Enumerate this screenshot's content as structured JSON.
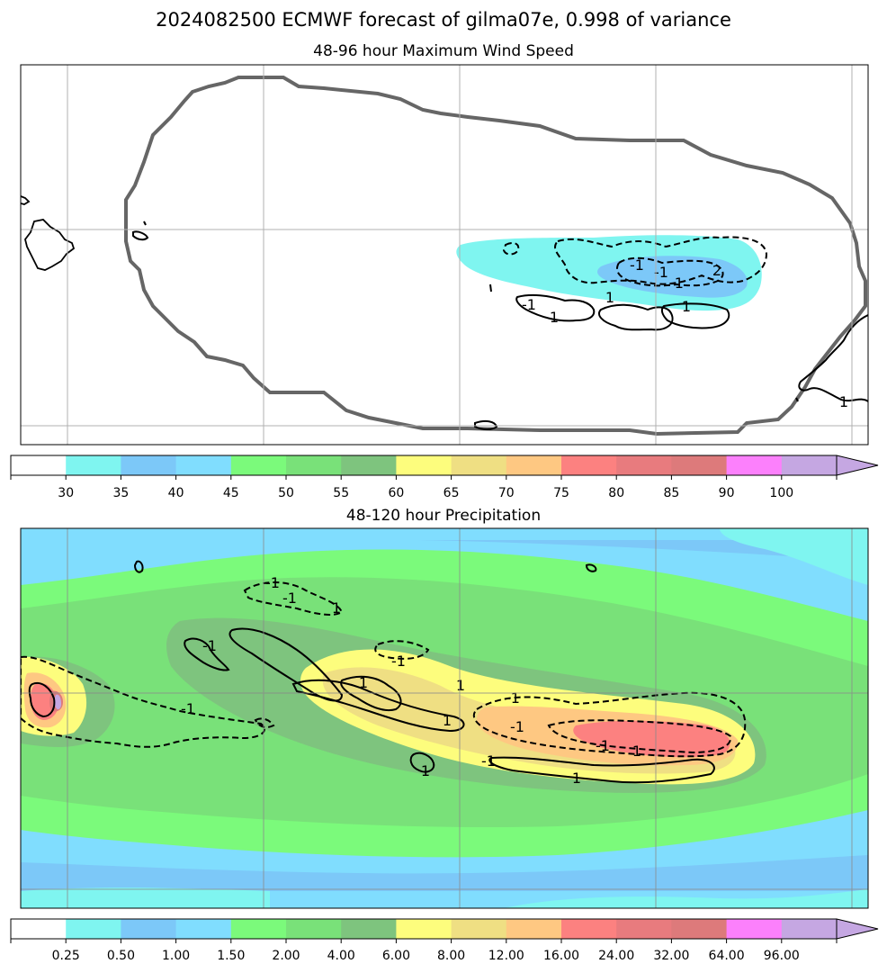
{
  "figure": {
    "title": "2024082500 ECMWF forecast of gilma07e, 0.998 of variance"
  },
  "panels": [
    {
      "id": "wind",
      "title": "48-96 hour Maximum Wind Speed",
      "colorbar": {
        "ticks": [
          "30",
          "35",
          "40",
          "45",
          "50",
          "55",
          "60",
          "65",
          "70",
          "75",
          "80",
          "85",
          "90",
          "100"
        ],
        "colors": [
          "#ffffff",
          "#7ff5f0",
          "#7cc8f8",
          "#80ddfe",
          "#7bfa7b",
          "#79e179",
          "#7ec47e",
          "#fdfd7d",
          "#efdf83",
          "#fec882",
          "#fc8180",
          "#e87b7e",
          "#dd7a7b",
          "#fc80fc",
          "#c5a7e2"
        ],
        "extend": "max"
      },
      "contour_labels": [
        "1",
        "1",
        "-1",
        "-1",
        "1",
        "-1",
        "2",
        "-1",
        "1"
      ]
    },
    {
      "id": "precip",
      "title": "48-120 hour Precipitation",
      "colorbar": {
        "ticks": [
          "0.25",
          "0.50",
          "1.00",
          "1.50",
          "2.00",
          "4.00",
          "6.00",
          "8.00",
          "12.00",
          "16.00",
          "24.00",
          "32.00",
          "64.00",
          "96.00"
        ],
        "colors": [
          "#ffffff",
          "#7ff5f0",
          "#7cc8f8",
          "#80ddfe",
          "#7bfa7b",
          "#79e179",
          "#7ec47e",
          "#fdfd7d",
          "#efdf83",
          "#fec882",
          "#fc8180",
          "#e87b7e",
          "#dd7a7b",
          "#fc80fc",
          "#c5a7e2"
        ],
        "extend": "max"
      },
      "contour_labels": [
        "-1",
        "-1",
        "1",
        "-1",
        "-1",
        "1",
        "-1",
        "1",
        "1",
        "-1",
        "-1",
        "1",
        "-1",
        "1",
        "-1",
        "1"
      ]
    }
  ]
}
